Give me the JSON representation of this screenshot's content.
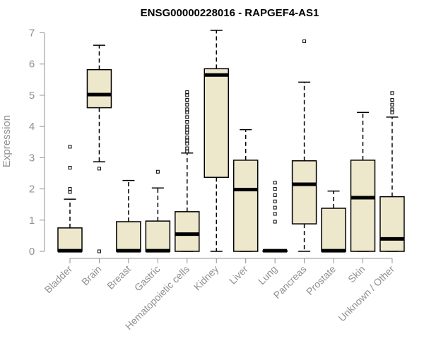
{
  "chart_data": {
    "type": "boxplot",
    "title": "ENSG00000228016 - RAPGEF4-AS1",
    "xlabel": "",
    "ylabel": "Expression",
    "ylim": [
      0,
      7
    ],
    "yticks": [
      0,
      1,
      2,
      3,
      4,
      5,
      6,
      7
    ],
    "box_color": "#ede7cc",
    "axis_color": "#909090",
    "categories": [
      "Bladder",
      "Brain",
      "Breast",
      "Gastric",
      "Hematopoietic cells",
      "Kidney",
      "Liver",
      "Lung",
      "Pancreas",
      "Prostate",
      "Skin",
      "Unknown / Other"
    ],
    "boxes": [
      {
        "min": 0,
        "q1": 0,
        "median": 0.02,
        "q3": 0.75,
        "max": 1.67,
        "outliers": [
          1.9,
          2.0,
          2.68,
          3.35
        ]
      },
      {
        "min": 2.87,
        "q1": 4.6,
        "median": 5.02,
        "q3": 5.82,
        "max": 6.6,
        "outliers": [
          2.65,
          0
        ]
      },
      {
        "min": 0,
        "q1": 0,
        "median": 0.02,
        "q3": 0.95,
        "max": 2.27,
        "outliers": []
      },
      {
        "min": 0,
        "q1": 0,
        "median": 0.02,
        "q3": 0.97,
        "max": 2.03,
        "outliers": [
          2.55
        ]
      },
      {
        "min": 0,
        "q1": 0,
        "median": 0.55,
        "q3": 1.27,
        "max": 3.15,
        "outliers": [
          3.2,
          3.3,
          3.45,
          3.55,
          3.65,
          3.8,
          3.9,
          4.0,
          4.15,
          4.3,
          4.45,
          4.55,
          4.7,
          4.85,
          5.0,
          5.1
        ]
      },
      {
        "min": 0,
        "q1": 2.37,
        "median": 5.65,
        "q3": 5.85,
        "max": 7.08,
        "outliers": []
      },
      {
        "min": 0,
        "q1": 0,
        "median": 1.98,
        "q3": 2.92,
        "max": 3.9,
        "outliers": []
      },
      {
        "min": 0,
        "q1": 0,
        "median": 0.02,
        "q3": 0.02,
        "max": 0.02,
        "outliers": [
          0.95,
          1.2,
          1.4,
          1.6,
          1.8,
          2.0,
          2.2
        ]
      },
      {
        "min": 0,
        "q1": 0.88,
        "median": 2.15,
        "q3": 2.9,
        "max": 5.42,
        "outliers": [
          6.73
        ]
      },
      {
        "min": 0,
        "q1": 0,
        "median": 0.02,
        "q3": 1.38,
        "max": 1.93,
        "outliers": []
      },
      {
        "min": 0,
        "q1": 0,
        "median": 1.72,
        "q3": 2.92,
        "max": 4.45,
        "outliers": []
      },
      {
        "min": 0,
        "q1": 0,
        "median": 0.4,
        "q3": 1.75,
        "max": 4.3,
        "outliers": [
          4.45,
          4.55,
          4.7,
          4.85,
          5.07
        ]
      }
    ]
  }
}
